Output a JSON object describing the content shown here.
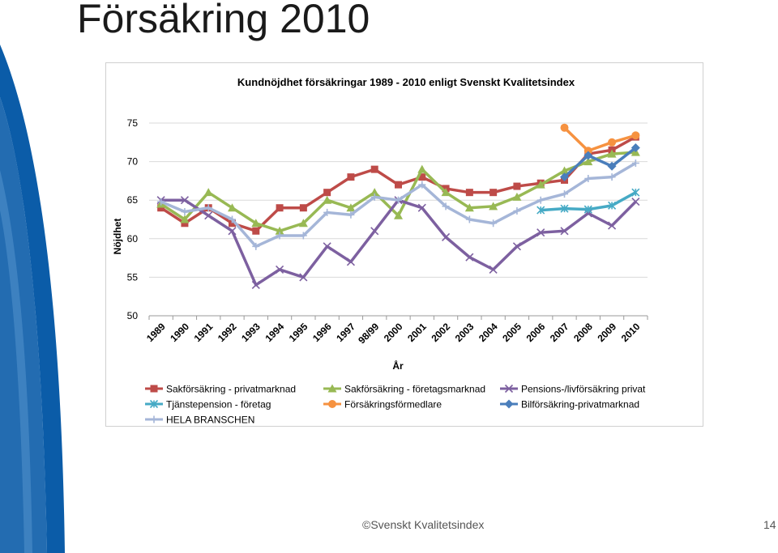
{
  "slide": {
    "title": "Försäkring 2010",
    "footer": "©Svenskt Kvalitetsindex",
    "page_number": "14"
  },
  "colors": {
    "deco_blue": "#0b5ca8",
    "deco_light": "#6fa8dc"
  },
  "chart_data": {
    "type": "line",
    "title": "Kundnöjdhet försäkringar 1989 - 2010 enligt Svenskt Kvalitetsindex",
    "xlabel": "År",
    "ylabel": "Nöjdhet",
    "ylim": [
      50,
      75
    ],
    "yticks": [
      50,
      55,
      60,
      65,
      70,
      75
    ],
    "grid": true,
    "legend_position": "bottom",
    "categories": [
      "1989",
      "1990",
      "1991",
      "1992",
      "1993",
      "1994",
      "1995",
      "1996",
      "1997",
      "98/99",
      "2000",
      "2001",
      "2002",
      "2003",
      "2004",
      "2005",
      "2006",
      "2007",
      "2008",
      "2009",
      "2010"
    ],
    "series": [
      {
        "name": "Sakförsäkring - privatmarknad",
        "color": "#be4b48",
        "marker": "square",
        "values": [
          64,
          62,
          64,
          62,
          61,
          64,
          64,
          66,
          68,
          69,
          67,
          68,
          66.5,
          66,
          66,
          66.8,
          67.2,
          67.6,
          71,
          71.5,
          73.2
        ]
      },
      {
        "name": "Sakförsäkring - företagsmarknad",
        "color": "#98b954",
        "marker": "triangle",
        "values": [
          64.5,
          62.5,
          66,
          64,
          62,
          61,
          62,
          65,
          64,
          66,
          63,
          69,
          66,
          64,
          64.2,
          65.4,
          67,
          68.8,
          70,
          71,
          71.2
        ]
      },
      {
        "name": "Pensions-/livförsäkring privat",
        "color": "#7d60a0",
        "marker": "x",
        "values": [
          65,
          65,
          63,
          61,
          54,
          56,
          55,
          59,
          57,
          61,
          65,
          64,
          60.2,
          57.6,
          56,
          59,
          60.8,
          61,
          63.3,
          61.7,
          64.8
        ]
      },
      {
        "name": "Tjänstepension - företag",
        "color": "#46aac5",
        "marker": "asterisk",
        "values": [
          null,
          null,
          null,
          null,
          null,
          null,
          null,
          null,
          null,
          null,
          null,
          null,
          null,
          null,
          null,
          null,
          63.7,
          63.9,
          63.8,
          64.3,
          66
        ]
      },
      {
        "name": "Försäkringsförmedlare",
        "color": "#f69240",
        "marker": "circle",
        "values": [
          null,
          null,
          null,
          null,
          null,
          null,
          null,
          null,
          null,
          null,
          null,
          null,
          null,
          null,
          null,
          null,
          null,
          74.4,
          71.4,
          72.5,
          73.4
        ]
      },
      {
        "name": "Bilförsäkring-privatmarknad",
        "color": "#4a7ebb",
        "marker": "diamond",
        "values": [
          null,
          null,
          null,
          null,
          null,
          null,
          null,
          null,
          null,
          null,
          null,
          null,
          null,
          null,
          null,
          null,
          null,
          68,
          70.8,
          69.4,
          71.8
        ]
      },
      {
        "name": "HELA BRANSCHEN",
        "color": "#a5b6d8",
        "marker": "plus",
        "values": [
          64.8,
          63.5,
          64,
          62.5,
          59,
          60.4,
          60.4,
          63.4,
          63.1,
          65.4,
          65,
          67,
          64.2,
          62.5,
          62,
          63.6,
          65,
          65.8,
          67.8,
          68,
          69.8
        ]
      }
    ]
  }
}
